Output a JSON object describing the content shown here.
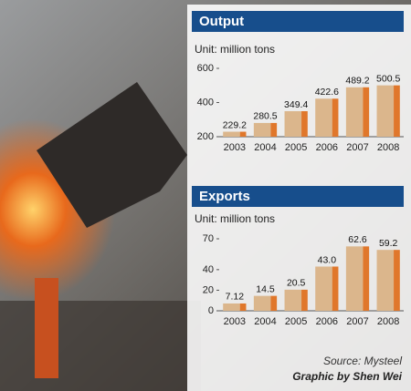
{
  "chart_data": [
    {
      "type": "bar",
      "title": "Output",
      "subtitle": "Unit: million tons",
      "categories": [
        "2003",
        "2004",
        "2005",
        "2006",
        "2007",
        "2008"
      ],
      "values": [
        229.2,
        280.5,
        349.4,
        422.6,
        489.2,
        500.5
      ],
      "color": "#dbb68c",
      "side_color": "#e0772b",
      "ylim": [
        200,
        600
      ],
      "yticks": [
        200,
        400,
        600
      ]
    },
    {
      "type": "bar",
      "title": "Exports",
      "subtitle": "Unit: million tons",
      "categories": [
        "2003",
        "2004",
        "2005",
        "2006",
        "2007",
        "2008"
      ],
      "values": [
        7.12,
        14.5,
        20.5,
        43.0,
        62.6,
        59.2
      ],
      "value_labels": [
        "7.12",
        "14.5",
        "20.5",
        "43.0",
        "62.6",
        "59.2"
      ],
      "color": "#dbb68c",
      "side_color": "#e0772b",
      "ylim": [
        0,
        70
      ],
      "yticks": [
        0,
        20,
        40,
        70
      ]
    }
  ],
  "source": "Source: Mysteel",
  "credit": "Graphic by Shen Wei"
}
